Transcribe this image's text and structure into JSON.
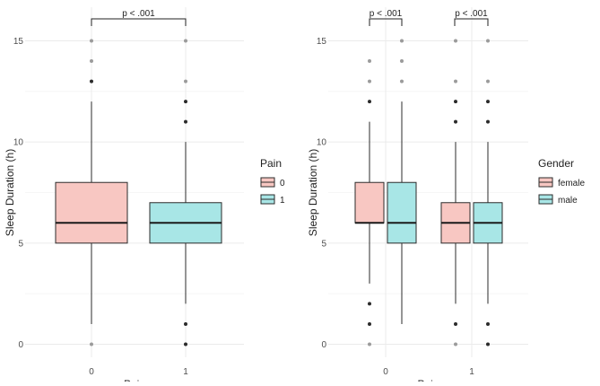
{
  "chart_data": [
    {
      "type": "boxplot",
      "title": "",
      "xlabel": "Pain",
      "ylabel": "Sleep Duration (h)",
      "ylim": [
        -0.3,
        15.7
      ],
      "y_ticks": [
        0,
        5,
        10,
        15
      ],
      "categories": [
        "0",
        "1"
      ],
      "legend": {
        "title": "Pain",
        "placement": "right",
        "entries": [
          {
            "label": "0",
            "color": "#f8c7c2"
          },
          {
            "label": "1",
            "color": "#a8e6e6"
          }
        ]
      },
      "boxes": [
        {
          "category": "0",
          "group": "0",
          "q1": 5,
          "median": 6,
          "q3": 8,
          "whisker_low": 1,
          "whisker_high": 12,
          "outliers": [
            0,
            13,
            14,
            15
          ],
          "outlier_shades": [
            "l",
            "d",
            "l",
            "l"
          ]
        },
        {
          "category": "1",
          "group": "1",
          "q1": 5,
          "median": 6,
          "q3": 7,
          "whisker_low": 2,
          "whisker_high": 10,
          "outliers": [
            0,
            1,
            11,
            12,
            13,
            15
          ],
          "outlier_shades": [
            "d",
            "d",
            "d",
            "d",
            "l",
            "l"
          ]
        }
      ],
      "annotations": [
        {
          "label": "p < .001",
          "from": "0",
          "to": "1"
        }
      ]
    },
    {
      "type": "boxplot",
      "title": "",
      "xlabel": "Pain",
      "ylabel": "Sleep Duration (h)",
      "ylim": [
        -0.3,
        15.7
      ],
      "y_ticks": [
        0,
        5,
        10,
        15
      ],
      "categories": [
        "0",
        "1"
      ],
      "legend": {
        "title": "Gender",
        "placement": "right",
        "entries": [
          {
            "label": "female",
            "color": "#f8c7c2"
          },
          {
            "label": "male",
            "color": "#a8e6e6"
          }
        ]
      },
      "boxes": [
        {
          "category": "0",
          "group": "female",
          "q1": 6,
          "median": 6,
          "q3": 8,
          "whisker_low": 3,
          "whisker_high": 11,
          "outliers": [
            0,
            1,
            2,
            12,
            13,
            14
          ],
          "outlier_shades": [
            "l",
            "d",
            "d",
            "d",
            "l",
            "l"
          ]
        },
        {
          "category": "0",
          "group": "male",
          "q1": 5,
          "median": 6,
          "q3": 8,
          "whisker_low": 1,
          "whisker_high": 12,
          "outliers": [
            13,
            14,
            15
          ],
          "outlier_shades": [
            "l",
            "l",
            "l"
          ]
        },
        {
          "category": "1",
          "group": "female",
          "q1": 5,
          "median": 6,
          "q3": 7,
          "whisker_low": 2,
          "whisker_high": 10,
          "outliers": [
            0,
            1,
            11,
            12,
            13,
            15
          ],
          "outlier_shades": [
            "l",
            "d",
            "d",
            "d",
            "l",
            "l"
          ]
        },
        {
          "category": "1",
          "group": "male",
          "q1": 5,
          "median": 6,
          "q3": 7,
          "whisker_low": 2,
          "whisker_high": 10,
          "outliers": [
            0,
            1,
            11,
            12,
            13,
            15
          ],
          "outlier_shades": [
            "d",
            "d",
            "d",
            "d",
            "l",
            "l"
          ]
        }
      ],
      "annotations": [
        {
          "label": "p < .001",
          "from": "0",
          "to": "0"
        },
        {
          "label": "p < .001",
          "from": "1",
          "to": "1"
        }
      ]
    }
  ]
}
